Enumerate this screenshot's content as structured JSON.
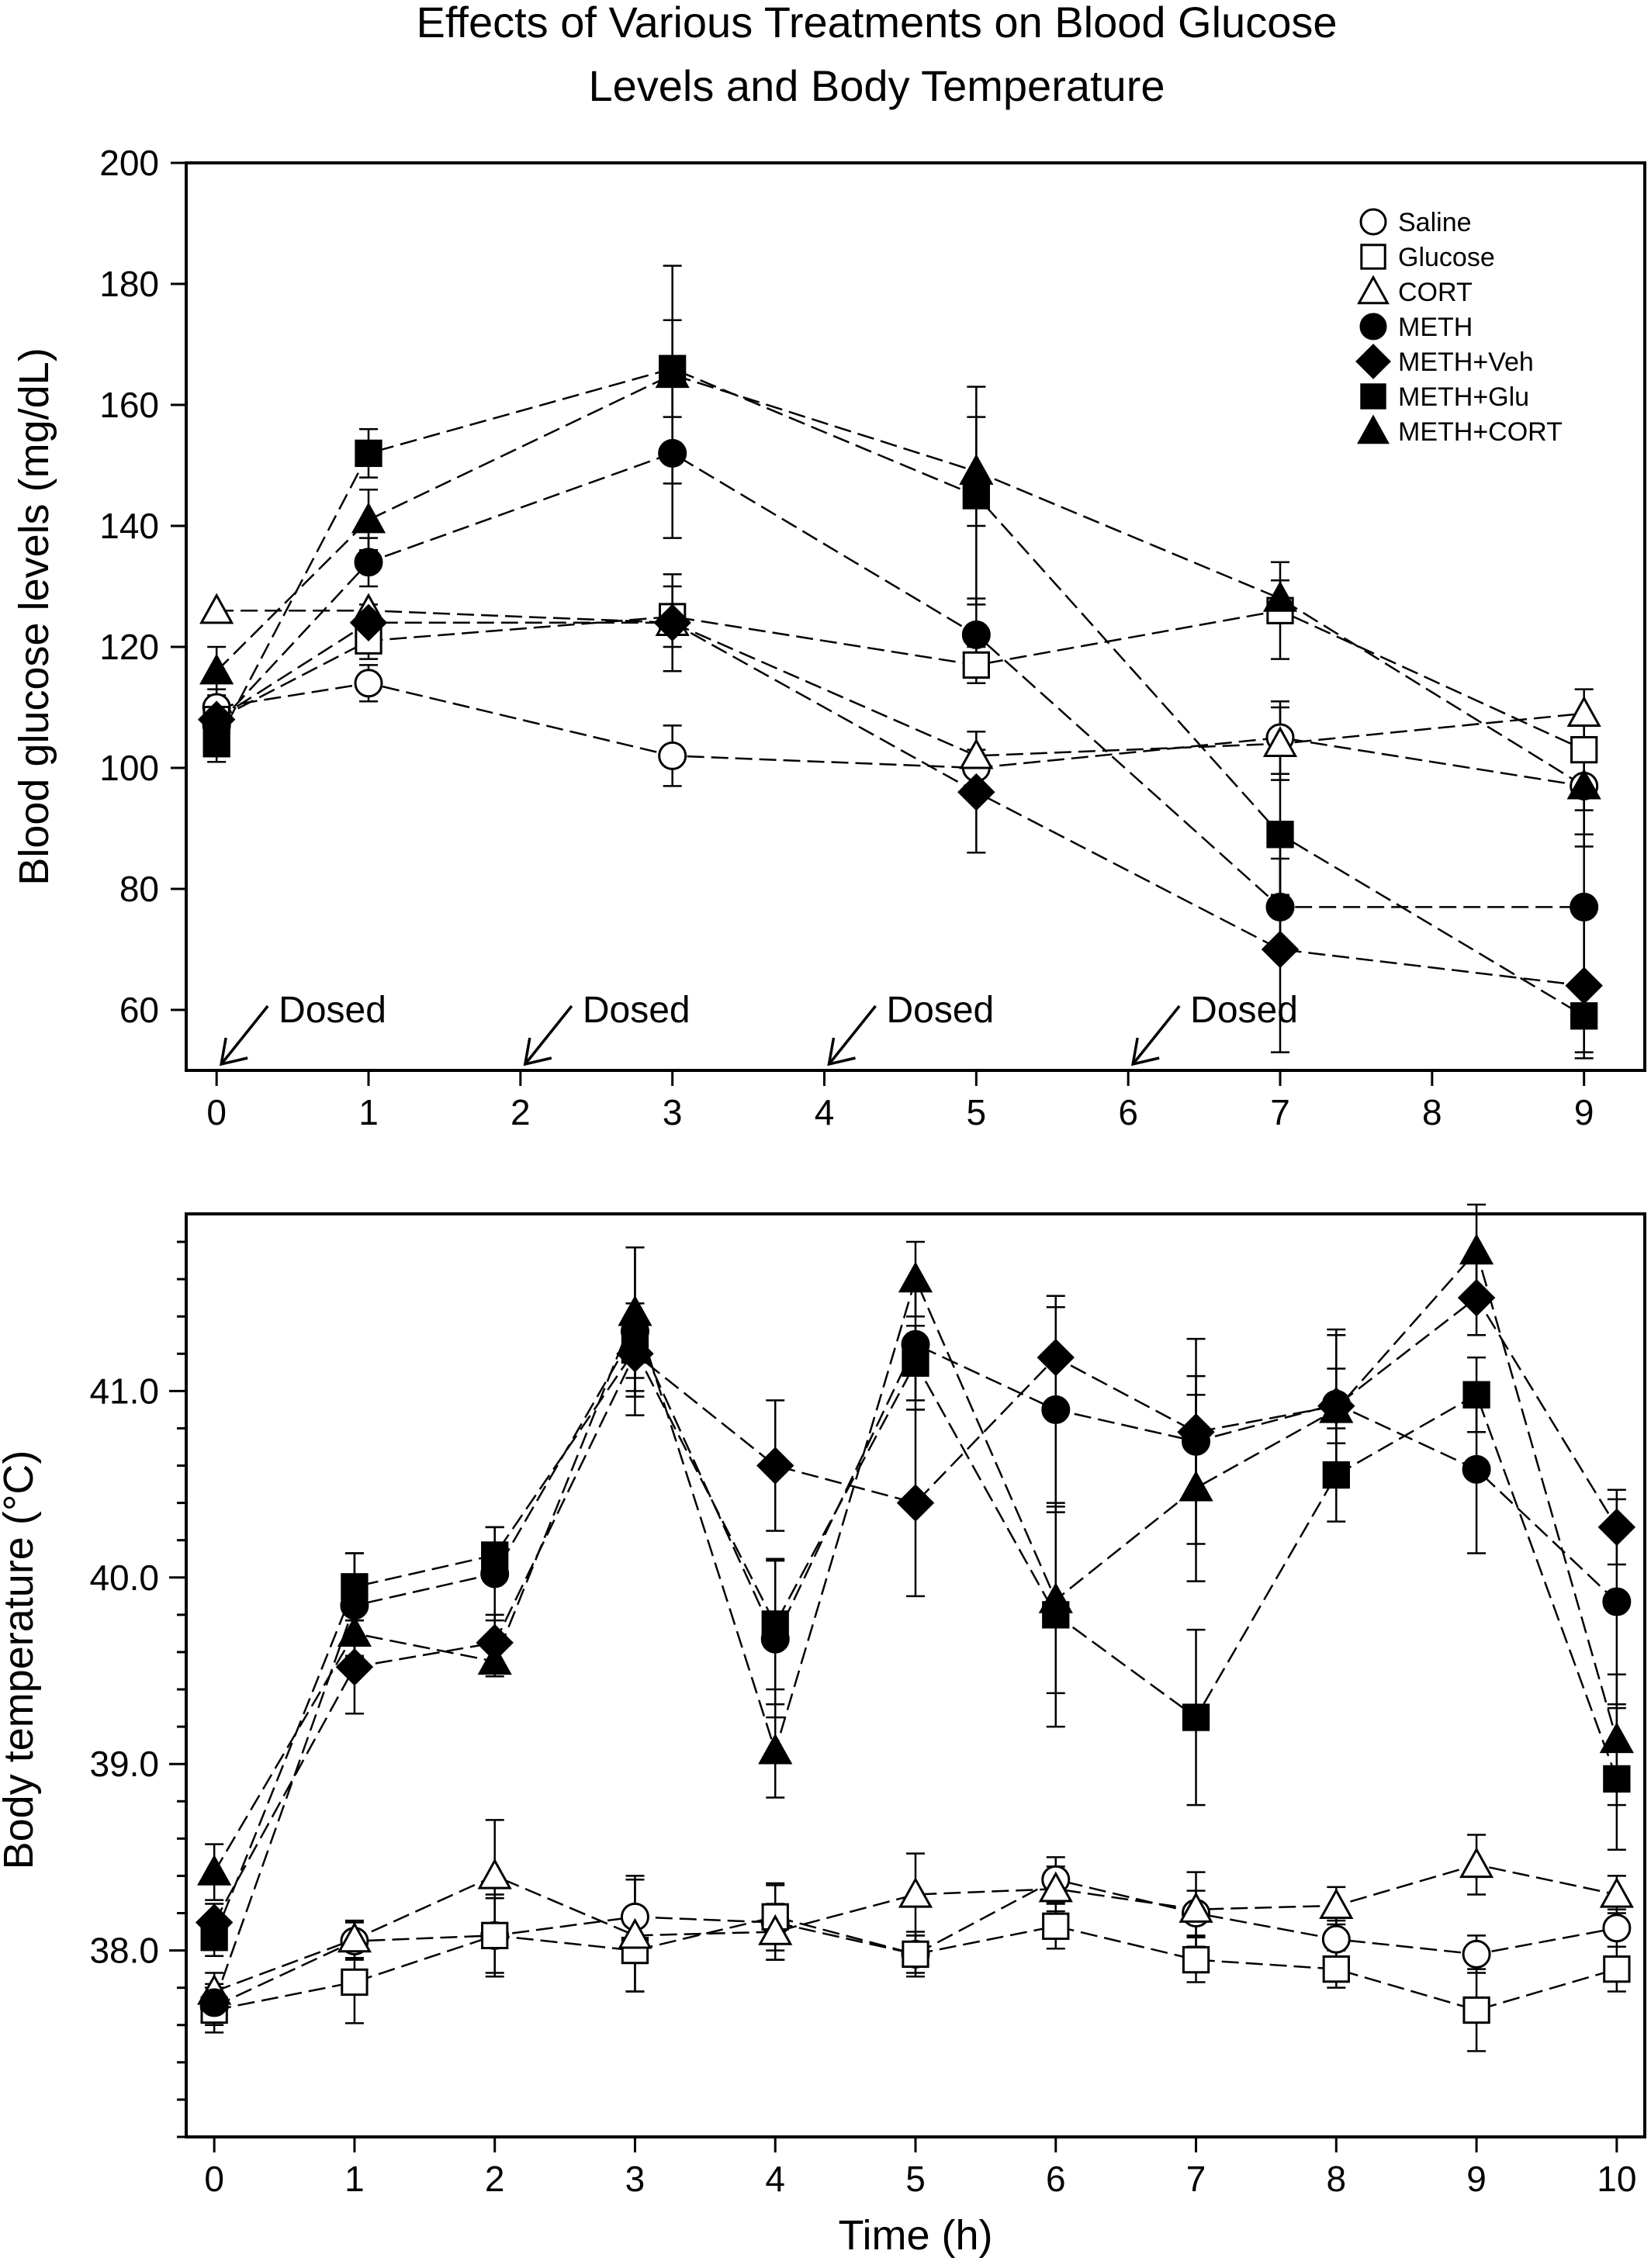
{
  "title_lines": [
    "Effects of Various Treatments on Blood Glucose",
    "Levels and Body Temperature"
  ],
  "styles": {
    "line_color": "#000000",
    "open_fill": "#ffffff",
    "filled_fill": "#000000"
  },
  "chart_data": [
    {
      "type": "line",
      "name": "glucose",
      "ylabel": "Blood glucose levels (mg/dL)",
      "xlabel": "",
      "xlim": [
        -0.2,
        9.4
      ],
      "ylim": [
        50,
        200
      ],
      "xticks": [
        0,
        1,
        2,
        3,
        4,
        5,
        6,
        7,
        8,
        9
      ],
      "yticks": [
        60,
        80,
        100,
        120,
        140,
        160,
        180,
        200
      ],
      "legend_position": "top-right",
      "annotations": [
        {
          "x": 0,
          "text": "Dosed"
        },
        {
          "x": 2,
          "text": "Dosed"
        },
        {
          "x": 4,
          "text": "Dosed"
        },
        {
          "x": 6,
          "text": "Dosed"
        }
      ],
      "series": [
        {
          "name": "Saline",
          "marker": "circle",
          "filled": false,
          "x": [
            0,
            1,
            3,
            5,
            7,
            9
          ],
          "y": [
            110,
            114,
            102,
            100,
            105,
            97
          ],
          "err": [
            3,
            3,
            5,
            3,
            6,
            8
          ]
        },
        {
          "name": "Glucose",
          "marker": "square",
          "filled": false,
          "x": [
            0,
            1,
            3,
            5,
            7,
            9
          ],
          "y": [
            108,
            121,
            125,
            117,
            126,
            103
          ],
          "err": [
            3,
            3,
            5,
            3,
            8,
            10
          ]
        },
        {
          "name": "CORT",
          "marker": "triangle",
          "filled": false,
          "x": [
            0,
            1,
            3,
            5,
            7,
            9
          ],
          "y": [
            126,
            126,
            124,
            102,
            104,
            109
          ],
          "err": [
            0,
            0,
            0,
            0,
            6,
            0
          ]
        },
        {
          "name": "METH",
          "marker": "circle",
          "filled": true,
          "x": [
            0,
            1,
            3,
            5,
            7,
            9
          ],
          "y": [
            107,
            134,
            152,
            122,
            77,
            77
          ],
          "err": [
            3,
            4,
            14,
            6,
            8,
            12
          ]
        },
        {
          "name": "METH+Veh",
          "marker": "diamond",
          "filled": true,
          "x": [
            0,
            1,
            3,
            5,
            7,
            9
          ],
          "y": [
            108,
            124,
            124,
            96,
            70,
            64
          ],
          "err": [
            3,
            3,
            8,
            10,
            17,
            12
          ]
        },
        {
          "name": "METH+Glu",
          "marker": "square",
          "filled": true,
          "x": [
            0,
            1,
            3,
            5,
            7,
            9
          ],
          "y": [
            104,
            152,
            166,
            145,
            89,
            59
          ],
          "err": [
            3,
            4,
            8,
            18,
            10,
            6
          ]
        },
        {
          "name": "METH+CORT",
          "marker": "triangle",
          "filled": true,
          "x": [
            0,
            1,
            3,
            5,
            7,
            9
          ],
          "y": [
            116,
            141,
            165,
            149,
            128,
            97
          ],
          "err": [
            4,
            5,
            18,
            9,
            3,
            10
          ]
        }
      ]
    },
    {
      "type": "line",
      "name": "temperature",
      "ylabel": "Body temperature (°C)",
      "xlabel": "Time (h)",
      "xlim": [
        -0.2,
        10.2
      ],
      "ylim": [
        37.0,
        41.95
      ],
      "xticks": [
        0,
        1,
        2,
        3,
        4,
        5,
        6,
        7,
        8,
        9,
        10
      ],
      "yticks_labeled": [
        38.0,
        39.0,
        40.0,
        41.0
      ],
      "yticks_labels": [
        "38.0",
        "39.0",
        "40.0",
        "41.0"
      ],
      "yticks_minor": [
        37.0,
        37.2,
        37.4,
        37.6,
        37.8,
        38.2,
        38.4,
        38.6,
        38.8,
        39.2,
        39.4,
        39.6,
        39.8,
        40.2,
        40.4,
        40.6,
        40.8,
        41.2,
        41.4,
        41.6,
        41.8
      ],
      "series": [
        {
          "name": "Saline",
          "marker": "circle",
          "filled": false,
          "x": [
            0,
            1,
            2,
            3,
            4,
            5,
            6,
            7,
            8,
            9,
            10
          ],
          "y": [
            37.7,
            38.05,
            38.08,
            38.18,
            38.15,
            37.98,
            38.38,
            38.2,
            38.06,
            37.98,
            38.12
          ],
          "err": [
            0.1,
            0.1,
            0.2,
            0.22,
            0.2,
            0.1,
            0.12,
            0.12,
            0.1,
            0.1,
            0.1
          ]
        },
        {
          "name": "Glucose",
          "marker": "square",
          "filled": false,
          "x": [
            0,
            1,
            2,
            3,
            4,
            5,
            6,
            7,
            8,
            9,
            10
          ],
          "y": [
            37.68,
            37.83,
            38.08,
            38.0,
            38.18,
            37.98,
            38.13,
            37.95,
            37.9,
            37.68,
            37.9
          ],
          "err": [
            0.12,
            0.22,
            0.22,
            0.22,
            0.18,
            0.12,
            0.12,
            0.12,
            0.1,
            0.22,
            0.12
          ]
        },
        {
          "name": "CORT",
          "marker": "triangle",
          "filled": false,
          "x": [
            0,
            1,
            2,
            3,
            4,
            5,
            6,
            7,
            8,
            9,
            10
          ],
          "y": [
            37.78,
            38.06,
            38.4,
            38.08,
            38.1,
            38.3,
            38.33,
            38.22,
            38.24,
            38.46,
            38.3
          ],
          "err": [
            0.1,
            0.1,
            0.3,
            0.3,
            0.15,
            0.22,
            0.12,
            0.2,
            0.1,
            0.16,
            0.1
          ]
        },
        {
          "name": "METH",
          "marker": "circle",
          "filled": true,
          "x": [
            0,
            1,
            2,
            3,
            4,
            5,
            6,
            7,
            8,
            9,
            10
          ],
          "y": [
            37.72,
            39.85,
            40.02,
            41.32,
            39.67,
            41.25,
            40.9,
            40.73,
            40.93,
            40.58,
            39.87
          ],
          "err": [
            0.1,
            0.28,
            0.25,
            0.45,
            0.42,
            0.35,
            0.55,
            0.55,
            0.4,
            0.45,
            0.55
          ]
        },
        {
          "name": "METH+Veh",
          "marker": "diamond",
          "filled": true,
          "x": [
            0,
            1,
            2,
            3,
            4,
            5,
            6,
            7,
            8,
            9,
            10
          ],
          "y": [
            38.15,
            39.52,
            39.65,
            41.2,
            40.6,
            40.4,
            41.18,
            40.78,
            40.92,
            41.5,
            40.27
          ],
          "err": [
            0.1,
            0.25,
            0.15,
            0.2,
            0.35,
            0.5,
            0.33,
            0.3,
            0.2,
            0.2,
            0.2
          ]
        },
        {
          "name": "METH+Glu",
          "marker": "square",
          "filled": true,
          "x": [
            0,
            1,
            2,
            3,
            4,
            5,
            6,
            7,
            8,
            9,
            10
          ],
          "y": [
            38.07,
            39.95,
            40.12,
            41.22,
            39.75,
            41.15,
            39.8,
            39.25,
            40.55,
            40.98,
            38.92
          ],
          "err": [
            0.1,
            0.18,
            0.15,
            0.25,
            0.35,
            0.2,
            0.6,
            0.47,
            0.25,
            0.2,
            0.38
          ]
        },
        {
          "name": "METH+CORT",
          "marker": "triangle",
          "filled": true,
          "x": [
            0,
            1,
            2,
            3,
            4,
            5,
            6,
            7,
            8,
            9,
            10
          ],
          "y": [
            38.42,
            39.7,
            39.55,
            41.42,
            39.07,
            41.6,
            39.88,
            40.48,
            40.9,
            41.75,
            39.13
          ],
          "err": [
            0.15,
            0.12,
            0.08,
            0.35,
            0.25,
            0.2,
            0.5,
            0.5,
            0.4,
            0.25,
            0.35
          ]
        }
      ]
    }
  ]
}
